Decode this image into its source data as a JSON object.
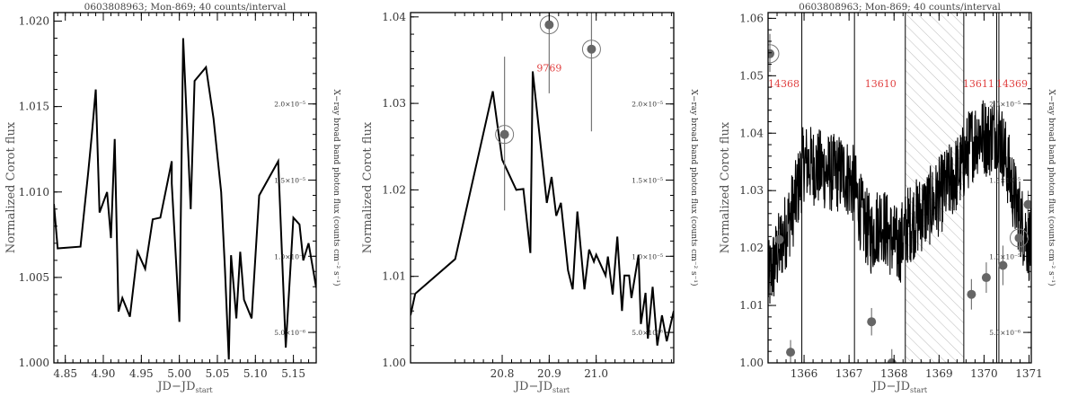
{
  "chart_data": [
    {
      "type": "line",
      "title": "0603808963; Mon-869; 40 counts/interval",
      "xlabel": "JD−JD",
      "xlabel_sub": "start",
      "ylabel": "Normalized Corot flux",
      "y2label": "X−ray broad band photon flux (counts cm⁻² s⁻¹)",
      "xlim": [
        4.835,
        5.18
      ],
      "ylim": [
        1.0,
        1.0205
      ],
      "y2lim": [
        3e-06,
        2.6e-05
      ],
      "xticks": [
        4.85,
        4.9,
        4.95,
        5.0,
        5.05,
        5.1,
        5.15
      ],
      "xtick_labels": [
        "4.85",
        "4.90",
        "4.95",
        "5.00",
        "5.05",
        "5.10",
        "5.15"
      ],
      "yticks": [
        1.0,
        1.005,
        1.01,
        1.015,
        1.02
      ],
      "ytick_labels": [
        "1.000",
        "1.005",
        "1.010",
        "1.015",
        "1.020"
      ],
      "y2ticks": [
        5e-06,
        1e-05,
        1.5e-05,
        2e-05
      ],
      "y2tick_labels": [
        "5.0×10⁻⁶",
        "1.0×10⁻⁵",
        "1.5×10⁻⁵",
        "2.0×10⁻⁵"
      ],
      "corot": {
        "x": [
          4.835,
          4.84,
          4.87,
          4.88,
          4.885,
          4.89,
          4.895,
          4.905,
          4.91,
          4.915,
          4.92,
          4.925,
          4.935,
          4.945,
          4.955,
          4.965,
          4.975,
          4.99,
          4.99,
          5.0,
          5.005,
          5.015,
          5.02,
          5.035,
          5.045,
          5.055,
          5.06,
          5.065,
          5.068,
          5.075,
          5.08,
          5.085,
          5.095,
          5.105,
          5.13,
          5.14,
          5.15,
          5.158,
          5.163,
          5.17,
          5.18
        ],
        "y": [
          1.0093,
          1.0067,
          1.0068,
          1.0111,
          1.0134,
          1.016,
          1.0088,
          1.01,
          1.0073,
          1.0131,
          1.003,
          1.0038,
          1.0027,
          1.0065,
          1.0055,
          1.0084,
          1.0085,
          1.0118,
          1.0105,
          1.0024,
          1.019,
          1.009,
          1.0165,
          1.0173,
          1.0143,
          1.01,
          1.0055,
          1.0002,
          1.0063,
          1.0026,
          1.0065,
          1.0037,
          1.0026,
          1.0098,
          1.0118,
          1.0009,
          1.0085,
          1.0081,
          1.006,
          1.007,
          1.0044
        ]
      },
      "xray": []
    },
    {
      "type": "line",
      "title": "",
      "xlabel": "JD−JD",
      "xlabel_sub": "start",
      "ylabel": "Normalized Corot flux",
      "y2label": "X−ray broad band photon flux (counts cm⁻² s⁻¹)",
      "xlim": [
        20.605,
        21.165
      ],
      "ylim": [
        1.0,
        1.0405
      ],
      "y2lim": [
        3e-06,
        2.6e-05
      ],
      "xticks": [
        20.8,
        20.9,
        21.0
      ],
      "xtick_labels": [
        "20.8",
        "20.9",
        "21.0"
      ],
      "yticks": [
        1.0,
        1.01,
        1.02,
        1.03,
        1.04
      ],
      "ytick_labels": [
        "1.00",
        "1.01",
        "1.02",
        "1.03",
        "1.04"
      ],
      "y2ticks": [
        5e-06,
        1e-05,
        1.5e-05,
        2e-05
      ],
      "y2tick_labels": [
        "5.0×10⁻⁶",
        "1.0×10⁻⁵",
        "1.5×10⁻⁵",
        "2.0×10⁻⁵"
      ],
      "annotations": [
        {
          "text": "9769",
          "x": 20.9,
          "y": 1.0337
        }
      ],
      "corot": {
        "x": [
          20.605,
          20.615,
          20.7,
          20.78,
          20.8,
          20.83,
          20.845,
          20.86,
          20.865,
          20.895,
          20.905,
          20.915,
          20.925,
          20.94,
          20.95,
          20.96,
          20.975,
          20.985,
          20.995,
          21.0,
          21.02,
          21.025,
          21.035,
          21.045,
          21.055,
          21.06,
          21.07,
          21.075,
          21.09,
          21.095,
          21.105,
          21.11,
          21.12,
          21.13,
          21.14,
          21.15,
          21.165
        ],
        "y": [
          1.0055,
          1.008,
          1.012,
          1.0314,
          1.0235,
          1.02,
          1.0201,
          1.0127,
          1.0337,
          1.0185,
          1.0215,
          1.017,
          1.0185,
          1.0107,
          1.0085,
          1.0175,
          1.0085,
          1.0131,
          1.0117,
          1.0125,
          1.0101,
          1.0123,
          1.0079,
          1.0146,
          1.006,
          1.0101,
          1.0101,
          1.0075,
          1.0125,
          1.0045,
          1.0081,
          1.0028,
          1.0088,
          1.002,
          1.0055,
          1.0025,
          1.006
        ]
      },
      "xray": [
        {
          "x": 20.805,
          "y": 1.8e-05,
          "yerr_low": 1.3e-05,
          "yerr_high": 2.31e-05,
          "circled": true
        },
        {
          "x": 20.9,
          "y": 2.52e-05,
          "yerr_low": 2.07e-05,
          "yerr_high": 2.6e-05,
          "circled": true
        },
        {
          "x": 20.99,
          "y": 2.36e-05,
          "yerr_low": 1.82e-05,
          "yerr_high": 2.6e-05,
          "circled": true
        }
      ]
    },
    {
      "type": "line",
      "title": "0603808963; Mon-869; 40 counts/interval",
      "xlabel": "JD−JD",
      "xlabel_sub": "start",
      "ylabel": "Normalized Corot flux",
      "y2label": "X−ray broad band photon flux (counts cm⁻² s⁻¹)",
      "xlim": [
        1365.2,
        1371.05
      ],
      "ylim": [
        1.0,
        1.061
      ],
      "y2lim": [
        3e-06,
        2.6e-05
      ],
      "xticks": [
        1366,
        1367,
        1368,
        1369,
        1370,
        1371
      ],
      "xtick_labels": [
        "1366",
        "1367",
        "1368",
        "1369",
        "1370",
        "1371"
      ],
      "yticks": [
        1.0,
        1.01,
        1.02,
        1.03,
        1.04,
        1.05,
        1.06
      ],
      "ytick_labels": [
        "1.00",
        "1.01",
        "1.02",
        "1.03",
        "1.04",
        "1.05",
        "1.06"
      ],
      "y2ticks": [
        5e-06,
        1e-05,
        1.5e-05,
        2e-05
      ],
      "y2tick_labels": [
        "5.0×10⁻⁶",
        "1.0×10⁻⁵",
        "1.5×10⁻⁵",
        "2.0×10⁻⁵"
      ],
      "vlines": [
        1365.95,
        1367.12,
        1368.25,
        1369.55,
        1370.28,
        1370.33
      ],
      "hatched_region": [
        1368.25,
        1369.55
      ],
      "annotations": [
        {
          "text": "14368",
          "x": 1365.55,
          "y": 1.048
        },
        {
          "text": "13610",
          "x": 1367.7,
          "y": 1.048
        },
        {
          "text": "13611",
          "x": 1369.88,
          "y": 1.048
        },
        {
          "text": "14369",
          "x": 1370.62,
          "y": 1.048
        }
      ],
      "corot_envelope": {
        "x": [
          1365.2,
          1365.5,
          1365.8,
          1366.0,
          1366.3,
          1366.6,
          1366.9,
          1367.1,
          1367.3,
          1367.5,
          1367.7,
          1367.9,
          1368.1,
          1368.3,
          1368.6,
          1368.9,
          1369.2,
          1369.5,
          1369.7,
          1369.9,
          1370.1,
          1370.3,
          1370.5,
          1370.7,
          1370.85,
          1371.05
        ],
        "y": [
          1.014,
          1.021,
          1.028,
          1.035,
          1.034,
          1.033,
          1.033,
          1.031,
          1.025,
          1.022,
          1.025,
          1.022,
          1.02,
          1.024,
          1.026,
          1.028,
          1.031,
          1.034,
          1.038,
          1.04,
          1.039,
          1.041,
          1.035,
          1.028,
          1.024,
          1.02
        ]
      },
      "xray": [
        {
          "x": 1365.24,
          "y": 2.33e-05,
          "yerr_low": 2.21e-05,
          "yerr_high": 2.46e-05,
          "circled": true
        },
        {
          "x": 1365.45,
          "y": 1.11e-05,
          "yerr_low": 1.05e-05,
          "yerr_high": 1.18e-05,
          "circled": false
        },
        {
          "x": 1365.7,
          "y": 3.7e-06,
          "yerr_low": 3e-06,
          "yerr_high": 4.5e-06,
          "circled": false
        },
        {
          "x": 1367.5,
          "y": 5.7e-06,
          "yerr_low": 4.8e-06,
          "yerr_high": 6.6e-06,
          "circled": false
        },
        {
          "x": 1367.95,
          "y": 3e-06,
          "yerr_low": 3e-06,
          "yerr_high": 3.9e-06,
          "circled": false
        },
        {
          "x": 1369.72,
          "y": 7.5e-06,
          "yerr_low": 6.5e-06,
          "yerr_high": 8.5e-06,
          "circled": false
        },
        {
          "x": 1370.05,
          "y": 8.6e-06,
          "yerr_low": 7.6e-06,
          "yerr_high": 9.6e-06,
          "circled": false
        },
        {
          "x": 1370.42,
          "y": 9.4e-06,
          "yerr_low": 8.1e-06,
          "yerr_high": 1.07e-05,
          "circled": false
        },
        {
          "x": 1370.78,
          "y": 1.12e-05,
          "yerr_low": 1.03e-05,
          "yerr_high": 1.21e-05,
          "circled": true
        },
        {
          "x": 1370.98,
          "y": 1.34e-05,
          "yerr_low": 1.25e-05,
          "yerr_high": 1.43e-05,
          "circled": false
        }
      ]
    }
  ]
}
